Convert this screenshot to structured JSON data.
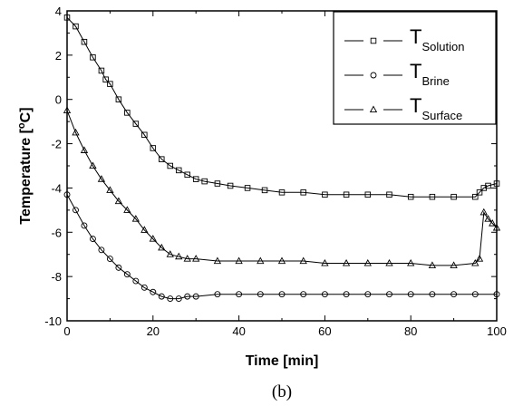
{
  "chart_data": {
    "type": "scatter",
    "title": "",
    "caption": "(b)",
    "xlabel": "Time [min]",
    "ylabel": "Temperature [",
    "ylabel_sup": "o",
    "ylabel_tail": "C]",
    "xlim": [
      0,
      100
    ],
    "ylim": [
      -10,
      4
    ],
    "xticks": [
      0,
      20,
      40,
      60,
      80,
      100
    ],
    "yticks": [
      -10,
      -8,
      -6,
      -4,
      -2,
      0,
      2,
      4
    ],
    "grid": false,
    "legend_position": "top-right",
    "series": [
      {
        "name": "T",
        "name_sub": "Solution",
        "marker": "square",
        "points": [
          [
            0,
            3.7
          ],
          [
            2,
            3.3
          ],
          [
            4,
            2.6
          ],
          [
            6,
            1.9
          ],
          [
            8,
            1.3
          ],
          [
            9,
            0.9
          ],
          [
            10,
            0.7
          ],
          [
            12,
            0.0
          ],
          [
            14,
            -0.6
          ],
          [
            16,
            -1.1
          ],
          [
            18,
            -1.6
          ],
          [
            20,
            -2.2
          ],
          [
            22,
            -2.7
          ],
          [
            24,
            -3.0
          ],
          [
            26,
            -3.2
          ],
          [
            28,
            -3.4
          ],
          [
            30,
            -3.6
          ],
          [
            32,
            -3.7
          ],
          [
            35,
            -3.8
          ],
          [
            38,
            -3.9
          ],
          [
            42,
            -4.0
          ],
          [
            46,
            -4.1
          ],
          [
            50,
            -4.2
          ],
          [
            55,
            -4.2
          ],
          [
            60,
            -4.3
          ],
          [
            65,
            -4.3
          ],
          [
            70,
            -4.3
          ],
          [
            75,
            -4.3
          ],
          [
            80,
            -4.4
          ],
          [
            85,
            -4.4
          ],
          [
            90,
            -4.4
          ],
          [
            95,
            -4.4
          ],
          [
            96,
            -4.2
          ],
          [
            97,
            -4.0
          ],
          [
            98,
            -3.9
          ],
          [
            100,
            -3.8
          ]
        ]
      },
      {
        "name": "T",
        "name_sub": "Brine",
        "marker": "circle",
        "points": [
          [
            0,
            -4.3
          ],
          [
            2,
            -5.0
          ],
          [
            4,
            -5.7
          ],
          [
            6,
            -6.3
          ],
          [
            8,
            -6.8
          ],
          [
            10,
            -7.2
          ],
          [
            12,
            -7.6
          ],
          [
            14,
            -7.9
          ],
          [
            16,
            -8.2
          ],
          [
            18,
            -8.5
          ],
          [
            20,
            -8.7
          ],
          [
            22,
            -8.9
          ],
          [
            24,
            -9.0
          ],
          [
            26,
            -9.0
          ],
          [
            28,
            -8.9
          ],
          [
            30,
            -8.9
          ],
          [
            35,
            -8.8
          ],
          [
            40,
            -8.8
          ],
          [
            45,
            -8.8
          ],
          [
            50,
            -8.8
          ],
          [
            55,
            -8.8
          ],
          [
            60,
            -8.8
          ],
          [
            65,
            -8.8
          ],
          [
            70,
            -8.8
          ],
          [
            75,
            -8.8
          ],
          [
            80,
            -8.8
          ],
          [
            85,
            -8.8
          ],
          [
            90,
            -8.8
          ],
          [
            95,
            -8.8
          ],
          [
            100,
            -8.8
          ]
        ]
      },
      {
        "name": "T",
        "name_sub": "Surface",
        "marker": "triangle",
        "points": [
          [
            0,
            -0.5
          ],
          [
            2,
            -1.5
          ],
          [
            4,
            -2.3
          ],
          [
            6,
            -3.0
          ],
          [
            8,
            -3.6
          ],
          [
            10,
            -4.1
          ],
          [
            12,
            -4.6
          ],
          [
            14,
            -5.0
          ],
          [
            16,
            -5.4
          ],
          [
            18,
            -5.9
          ],
          [
            20,
            -6.3
          ],
          [
            22,
            -6.7
          ],
          [
            24,
            -7.0
          ],
          [
            26,
            -7.1
          ],
          [
            28,
            -7.2
          ],
          [
            30,
            -7.2
          ],
          [
            35,
            -7.3
          ],
          [
            40,
            -7.3
          ],
          [
            45,
            -7.3
          ],
          [
            50,
            -7.3
          ],
          [
            55,
            -7.3
          ],
          [
            60,
            -7.4
          ],
          [
            65,
            -7.4
          ],
          [
            70,
            -7.4
          ],
          [
            75,
            -7.4
          ],
          [
            80,
            -7.4
          ],
          [
            85,
            -7.5
          ],
          [
            90,
            -7.5
          ],
          [
            95,
            -7.4
          ],
          [
            96,
            -7.2
          ],
          [
            97,
            -5.1
          ],
          [
            98,
            -5.4
          ],
          [
            99,
            -5.6
          ],
          [
            100,
            -5.8
          ]
        ]
      }
    ]
  }
}
